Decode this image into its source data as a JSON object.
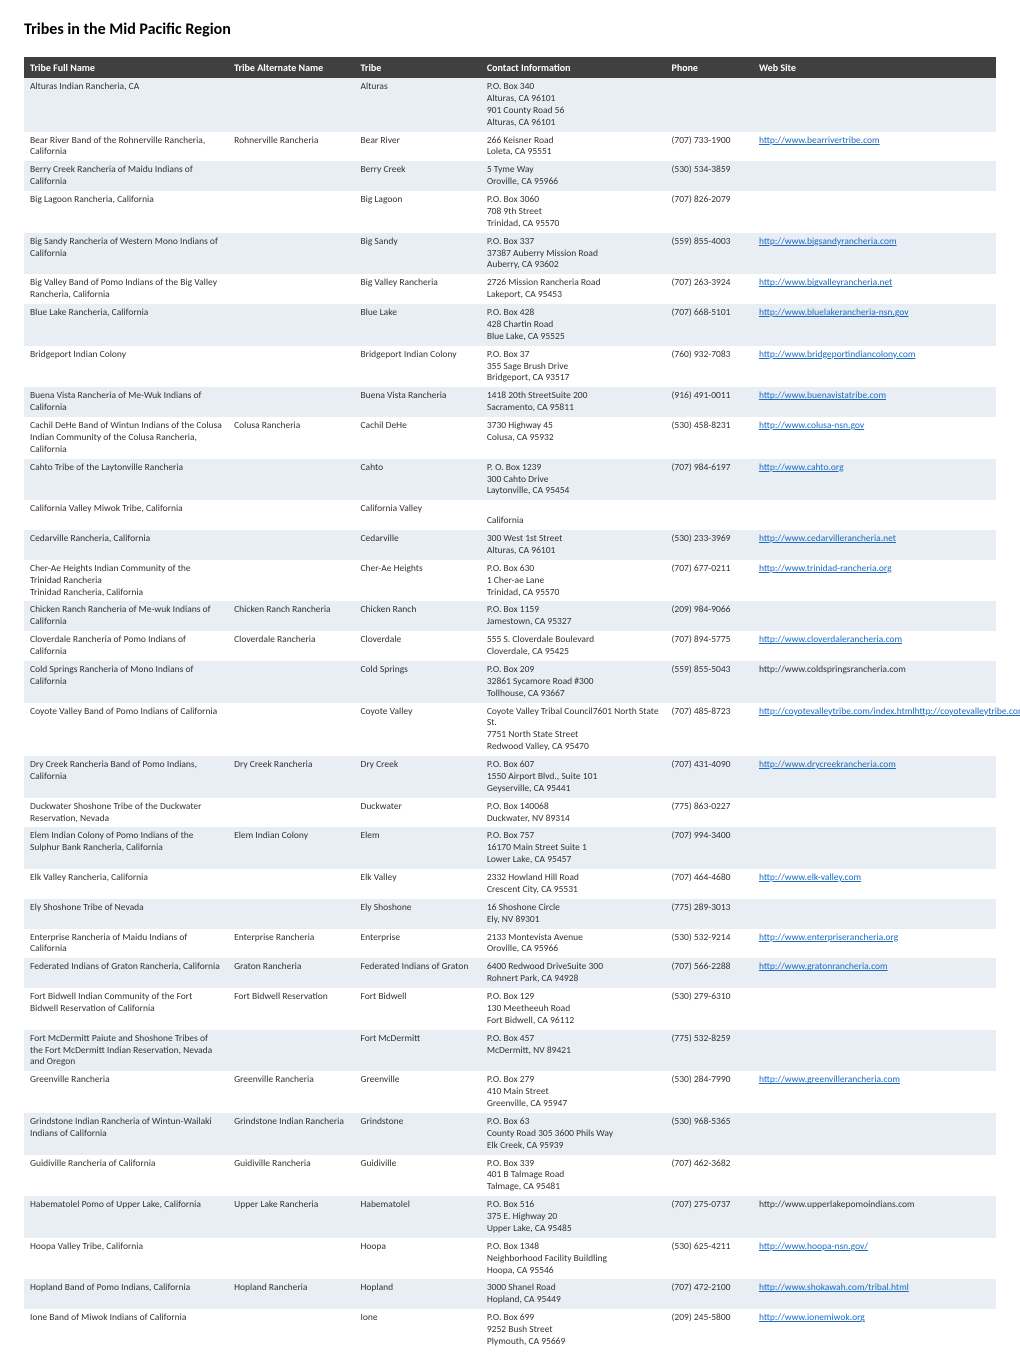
{
  "title": "Tribes in the Mid Pacific Region",
  "columns": [
    "Tribe Full Name",
    "Tribe Alternate Name",
    "Tribe",
    "Contact Information",
    "Phone",
    "Web Site"
  ],
  "colors": {
    "header_bg": "#404040",
    "header_fg": "#ffffff",
    "row_bg": "#ffffff",
    "row_alt_bg": "#e8eef4",
    "link": "#1a6bc4",
    "text": "#333333"
  },
  "font": {
    "family": "Calibri",
    "size_body_pt": 7.5,
    "size_title_pt": 12
  },
  "column_widths_pct": [
    21,
    13,
    13,
    19,
    9,
    25
  ],
  "rows": [
    {
      "name": "Alturas Indian Rancheria, CA",
      "alt": "",
      "tribe": "Alturas",
      "contact": "P.O. Box 340\nAlturas, CA 96101\n901 County Road 56\nAlturas, CA 96101",
      "phone": "",
      "site": ""
    },
    {
      "name": "Bear River Band of the Rohnerville Rancheria, California",
      "alt": "Rohnerville Rancheria",
      "tribe": "Bear River",
      "contact": "266 Keisner Road\nLoleta, CA 95551",
      "phone": "(707) 733-1900",
      "site": "http://www.bearrivertribe.com"
    },
    {
      "name": "Berry Creek Rancheria of Maidu Indians of California",
      "alt": "",
      "tribe": "Berry Creek",
      "contact": "5 Tyme Way\nOroville, CA 95966",
      "phone": "(530) 534-3859",
      "site": ""
    },
    {
      "name": "Big Lagoon Rancheria, California",
      "alt": "",
      "tribe": "Big Lagoon",
      "contact": "P.O. Box 3060\n708 9th Street\nTrinidad, CA 95570",
      "phone": "(707) 826-2079",
      "site": ""
    },
    {
      "name": "Big Sandy Rancheria of Western Mono Indians of California",
      "alt": "",
      "tribe": "Big Sandy",
      "contact": "P.O. Box 337\n37387 Auberry Mission Road\nAuberry, CA 93602",
      "phone": "(559) 855-4003",
      "site": "http://www.bigsandyrancheria.com"
    },
    {
      "name": "Big Valley Band of Pomo Indians of the Big Valley Rancheria, California",
      "alt": "",
      "tribe": "Big Valley Rancheria",
      "contact": "2726 Mission Rancheria Road\nLakeport, CA 95453",
      "phone": "(707) 263-3924",
      "site": "http://www.bigvalleyrancheria.net"
    },
    {
      "name": "Blue Lake Rancheria, California",
      "alt": "",
      "tribe": "Blue Lake",
      "contact": "P.O. Box 428\n428 Chartin Road\nBlue Lake, CA 95525",
      "phone": "(707) 668-5101",
      "site": "http://www.bluelakerancheria-nsn.gov"
    },
    {
      "name": "Bridgeport Indian Colony",
      "alt": "",
      "tribe": "Bridgeport Indian Colony",
      "contact": "P.O. Box 37\n355 Sage Brush Drive\nBridgeport, CA 93517",
      "phone": "(760) 932-7083",
      "site": "http://www.bridgeportindiancolony.com"
    },
    {
      "name": "Buena Vista Rancheria of Me-Wuk Indians of California",
      "alt": "",
      "tribe": "Buena Vista Rancheria",
      "contact": "1418 20th StreetSuite 200\nSacramento, CA 95811",
      "phone": "(916) 491-0011",
      "site": "http://www.buenavistatribe.com"
    },
    {
      "name": "Cachil DeHe Band of Wintun Indians of the Colusa Indian Community of the Colusa Rancheria, California",
      "alt": "Colusa Rancheria",
      "tribe": "Cachil DeHe",
      "contact": "3730 Highway 45\nColusa, CA 95932",
      "phone": "(530) 458-8231",
      "site": "http://www.colusa-nsn.gov"
    },
    {
      "name": "Cahto Tribe of the Laytonville Rancheria",
      "alt": "",
      "tribe": "Cahto",
      "contact": "P. O. Box 1239\n300 Cahto Drive\nLaytonville, CA 95454",
      "phone": "(707) 984-6197",
      "site": "http://www.cahto.org"
    },
    {
      "name": "California Valley Miwok Tribe, California",
      "alt": "",
      "tribe": "California Valley",
      "contact": "\nCalifornia",
      "phone": "",
      "site": ""
    },
    {
      "name": "Cedarville Rancheria, California",
      "alt": "",
      "tribe": "Cedarville",
      "contact": "300 West 1st Street\nAlturas, CA 96101",
      "phone": "(530) 233-3969",
      "site": "http://www.cedarvillerancheria.net"
    },
    {
      "name": "Cher-Ae Heights Indian Community of the Trinidad Rancheria\nTrinidad Rancheria, California",
      "alt": "",
      "tribe": "Cher-Ae Heights",
      "contact": "P.O. Box 630\n1 Cher-ae Lane\nTrinidad, CA 95570",
      "phone": "(707) 677-0211",
      "site": "http://www.trinidad-rancheria.org"
    },
    {
      "name": "Chicken Ranch Rancheria of Me-wuk Indians of California",
      "alt": "Chicken Ranch Rancheria",
      "tribe": "Chicken Ranch",
      "contact": "P.O. Box 1159\nJamestown, CA 95327",
      "phone": "(209) 984-9066",
      "site": ""
    },
    {
      "name": "Cloverdale Rancheria of Pomo Indians of California",
      "alt": "Cloverdale Rancheria",
      "tribe": "Cloverdale",
      "contact": "555 S. Cloverdale Boulevard\nCloverdale, CA 95425",
      "phone": "(707) 894-5775",
      "site": "http://www.cloverdalerancheria.com"
    },
    {
      "name": "Cold Springs Rancheria of Mono Indians of California",
      "alt": "",
      "tribe": "Cold Springs",
      "contact": "P.O. Box 209\n32861 Sycamore Road #300\nTollhouse, CA 93667",
      "phone": "(559) 855-5043",
      "site": "http://www.coldspringsrancheria.com",
      "site_is_link": false
    },
    {
      "name": "Coyote Valley Band of Pomo Indians of California",
      "alt": "",
      "tribe": "Coyote Valley",
      "contact": "Coyote Valley Tribal Council7601 North State St.\n7751 North State Street\nRedwood Valley, CA 95470",
      "phone": "(707) 485-8723",
      "site": "http://coyotevalleytribe.com/index.htmlhttp://coyotevalleytribe.com/"
    },
    {
      "name": "Dry Creek Rancheria Band of Pomo Indians, California",
      "alt": "Dry Creek Rancheria",
      "tribe": "Dry Creek",
      "contact": "P.O. Box 607\n1550 Airport Blvd., Suite 101\nGeyserville, CA 95441",
      "phone": "(707) 431-4090",
      "site": "http://www.drycreekrancheria.com"
    },
    {
      "name": "Duckwater Shoshone Tribe of the Duckwater Reservation, Nevada",
      "alt": "",
      "tribe": "Duckwater",
      "contact": "P.O. Box 140068\nDuckwater, NV 89314",
      "phone": "(775) 863-0227",
      "site": ""
    },
    {
      "name": "Elem Indian Colony of Pomo Indians of the Sulphur Bank Rancheria, California",
      "alt": "Elem Indian Colony",
      "tribe": "Elem",
      "contact": "P.O. Box 757\n16170 Main Street Suite 1\nLower Lake, CA 95457",
      "phone": "(707) 994-3400",
      "site": ""
    },
    {
      "name": "Elk Valley Rancheria, California",
      "alt": "",
      "tribe": "Elk Valley",
      "contact": "2332 Howland Hill Road\nCrescent City, CA 95531",
      "phone": "(707) 464-4680",
      "site": "http://www.elk-valley.com"
    },
    {
      "name": "Ely Shoshone Tribe of Nevada",
      "alt": "",
      "tribe": "Ely Shoshone",
      "contact": "16 Shoshone Circle\nEly, NV 89301",
      "phone": "(775) 289-3013",
      "site": ""
    },
    {
      "name": "Enterprise Rancheria of Maidu Indians of California",
      "alt": "Enterprise Rancheria",
      "tribe": "Enterprise",
      "contact": "2133 Montevista Avenue\nOroville, CA 95966",
      "phone": "(530) 532-9214",
      "site": "http://www.enterpriserancheria.org"
    },
    {
      "name": "Federated Indians of Graton Rancheria, California",
      "alt": "Graton Rancheria",
      "tribe": "Federated Indians of Graton",
      "contact": "6400 Redwood DriveSuite 300\nRohnert Park, CA 94928",
      "phone": "(707) 566-2288",
      "site": "http://www.gratonrancheria.com"
    },
    {
      "name": "Fort Bidwell Indian Community of the Fort Bidwell Reservation of California",
      "alt": "Fort Bidwell Reservation",
      "tribe": "Fort Bidwell",
      "contact": "P.O. Box 129\n130 Meetheeuh Road\nFort Bidwell, CA 96112",
      "phone": "(530) 279-6310",
      "site": ""
    },
    {
      "name": "Fort McDermitt Paiute and Shoshone Tribes of the Fort McDermitt Indian Reservation, Nevada and Oregon",
      "alt": "",
      "tribe": "Fort McDermitt",
      "contact": "P.O. Box 457\nMcDermitt, NV 89421",
      "phone": "(775) 532-8259",
      "site": ""
    },
    {
      "name": "Greenville Rancheria",
      "alt": "Greenville Rancheria",
      "tribe": "Greenville",
      "contact": "P.O. Box 279\n410 Main Street\nGreenville, CA 95947",
      "phone": "(530) 284-7990",
      "site": "http://www.greenvillerancheria.com"
    },
    {
      "name": "Grindstone Indian Rancheria of Wintun-Wailaki Indians of California",
      "alt": "Grindstone Indian Rancheria",
      "tribe": "Grindstone",
      "contact": "P.O. Box 63\nCounty Road 305 3600 Phils Way\nElk Creek, CA 95939",
      "phone": "(530) 968-5365",
      "site": ""
    },
    {
      "name": "Guidiville Rancheria of California",
      "alt": "Guidiville Rancheria",
      "tribe": "Guidiville",
      "contact": "P.O. Box 339\n401 B Talmage Road\nTalmage, CA 95481",
      "phone": "(707) 462-3682",
      "site": ""
    },
    {
      "name": "Habematolel Pomo of Upper Lake, California",
      "alt": "Upper Lake Rancheria",
      "tribe": "Habematolel",
      "contact": "P.O. Box 516\n375 E. Highway 20\nUpper Lake, CA 95485",
      "phone": "(707) 275-0737",
      "site": "http://www.upperlakepomoindians.com",
      "site_is_link": false
    },
    {
      "name": "Hoopa Valley Tribe, California",
      "alt": "",
      "tribe": "Hoopa",
      "contact": "P.O. Box 1348\nNeighborhood Facility Buildling\nHoopa, CA 95546",
      "phone": "(530) 625-4211",
      "site": "http://www.hoopa-nsn.gov/"
    },
    {
      "name": "Hopland Band of Pomo Indians, California",
      "alt": "Hopland Rancheria",
      "tribe": "Hopland",
      "contact": "3000 Shanel Road\nHopland, CA 95449",
      "phone": "(707) 472-2100",
      "site": "http://www.shokawah.com/tribal.html"
    },
    {
      "name": "Ione Band of Miwok Indians of California",
      "alt": "",
      "tribe": "Ione",
      "contact": "P.O. Box 699\n9252 Bush Street\nPlymouth, CA 95669",
      "phone": "(209) 245-5800",
      "site": "http://www.ionemiwok.org"
    }
  ]
}
